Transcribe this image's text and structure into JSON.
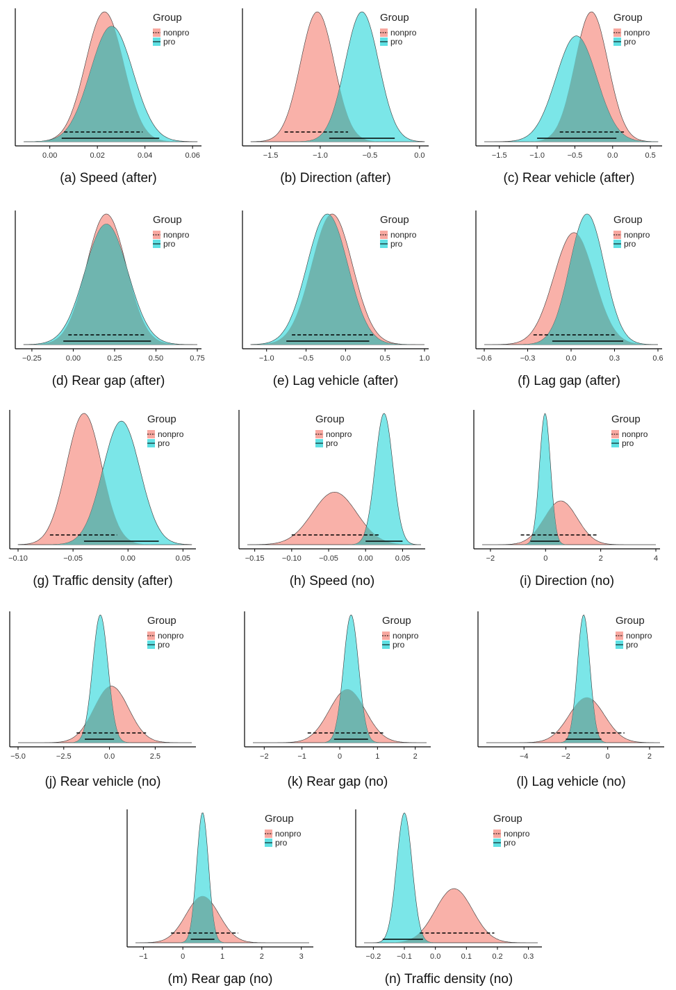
{
  "legend_title": "Group",
  "groups": [
    "nonpro",
    "pro"
  ],
  "colors": {
    "nonpro": "#f8a8a0",
    "pro": "#5ee0e3",
    "overlap": "#6fb3ad",
    "outline": "#333333",
    "axis": "#000000"
  },
  "chart_data": [
    {
      "type": "area",
      "caption": "(a) Speed (after)",
      "xlim": [
        -0.011,
        0.062
      ],
      "xticks": [
        "0.00",
        "0.02",
        "0.04",
        "0.06"
      ],
      "legend_position": "top-right",
      "series": [
        {
          "name": "nonpro",
          "mean": 0.023,
          "sd": 0.008,
          "interval": [
            0.006,
            0.039
          ],
          "line_style": "dashed"
        },
        {
          "name": "pro",
          "mean": 0.026,
          "sd": 0.009,
          "interval": [
            0.005,
            0.046
          ],
          "line_style": "solid"
        }
      ]
    },
    {
      "type": "area",
      "caption": "(b) Direction (after)",
      "xlim": [
        -1.7,
        0.05
      ],
      "xticks": [
        "-1.5",
        "-1.0",
        "-0.5",
        "0.0"
      ],
      "legend_position": "top-right",
      "series": [
        {
          "name": "nonpro",
          "mean": -1.03,
          "sd": 0.17,
          "interval": [
            -1.36,
            -0.72
          ],
          "line_style": "dashed"
        },
        {
          "name": "pro",
          "mean": -0.58,
          "sd": 0.17,
          "interval": [
            -0.91,
            -0.25
          ],
          "line_style": "solid"
        }
      ]
    },
    {
      "type": "area",
      "caption": "(c) Rear vehicle (after)",
      "xlim": [
        -1.7,
        0.6
      ],
      "xticks": [
        "-1.5",
        "-1.0",
        "-0.5",
        "0.0",
        "0.5"
      ],
      "legend_position": "top-right",
      "series": [
        {
          "name": "nonpro",
          "mean": -0.28,
          "sd": 0.22,
          "interval": [
            -0.7,
            0.15
          ],
          "line_style": "dashed"
        },
        {
          "name": "pro",
          "mean": -0.48,
          "sd": 0.27,
          "interval": [
            -1.0,
            0.05
          ],
          "line_style": "solid"
        }
      ]
    },
    {
      "type": "area",
      "caption": "(d) Rear gap (after)",
      "xlim": [
        -0.3,
        0.75
      ],
      "xticks": [
        "-0.25",
        "0.00",
        "0.25",
        "0.50",
        "0.75"
      ],
      "legend_position": "top-right",
      "series": [
        {
          "name": "nonpro",
          "mean": 0.2,
          "sd": 0.12,
          "interval": [
            -0.03,
            0.43
          ],
          "line_style": "dashed"
        },
        {
          "name": "pro",
          "mean": 0.2,
          "sd": 0.13,
          "interval": [
            -0.06,
            0.47
          ],
          "line_style": "solid"
        }
      ]
    },
    {
      "type": "area",
      "caption": "(e) Lag vehicle (after)",
      "xlim": [
        -1.2,
        1.0
      ],
      "xticks": [
        "-1.0",
        "-0.5",
        "0.0",
        "0.5",
        "1.0"
      ],
      "legend_position": "top-right",
      "series": [
        {
          "name": "nonpro",
          "mean": -0.17,
          "sd": 0.26,
          "interval": [
            -0.68,
            0.37
          ],
          "line_style": "dashed"
        },
        {
          "name": "pro",
          "mean": -0.23,
          "sd": 0.26,
          "interval": [
            -0.75,
            0.3
          ],
          "line_style": "solid"
        }
      ]
    },
    {
      "type": "area",
      "caption": "(f) Lag gap (after)",
      "xlim": [
        -0.6,
        0.6
      ],
      "xticks": [
        "-0.6",
        "-0.3",
        "0.0",
        "0.3",
        "0.6"
      ],
      "legend_position": "top-right",
      "series": [
        {
          "name": "nonpro",
          "mean": 0.02,
          "sd": 0.14,
          "interval": [
            -0.26,
            0.3
          ],
          "line_style": "dashed"
        },
        {
          "name": "pro",
          "mean": 0.11,
          "sd": 0.12,
          "interval": [
            -0.13,
            0.36
          ],
          "line_style": "solid"
        }
      ]
    },
    {
      "type": "area",
      "caption": "(g) Traffic density (after)",
      "xlim": [
        -0.1,
        0.058
      ],
      "xticks": [
        "-0.10",
        "-0.05",
        "0.00",
        "0.05"
      ],
      "legend_position": "top-right",
      "series": [
        {
          "name": "nonpro",
          "mean": -0.04,
          "sd": 0.016,
          "interval": [
            -0.071,
            -0.01
          ],
          "line_style": "dashed"
        },
        {
          "name": "pro",
          "mean": -0.006,
          "sd": 0.017,
          "interval": [
            -0.04,
            0.028
          ],
          "line_style": "solid"
        }
      ]
    },
    {
      "type": "area",
      "caption": "(h) Speed (no)",
      "xlim": [
        -0.16,
        0.075
      ],
      "xticks": [
        "-0.15",
        "-0.10",
        "-0.05",
        "0.00",
        "0.05"
      ],
      "legend_position": "top-center",
      "series": [
        {
          "name": "nonpro",
          "mean": -0.042,
          "sd": 0.03,
          "interval": [
            -0.1,
            0.018
          ],
          "line_style": "dashed"
        },
        {
          "name": "pro",
          "mean": 0.025,
          "sd": 0.012,
          "interval": [
            0.0,
            0.05
          ],
          "line_style": "solid"
        }
      ]
    },
    {
      "type": "area",
      "caption": "(i) Direction (no)",
      "xlim": [
        -2.3,
        4.0
      ],
      "xticks": [
        "-2",
        "0",
        "2",
        "4"
      ],
      "legend_position": "top-right",
      "series": [
        {
          "name": "nonpro",
          "mean": 0.55,
          "sd": 0.6,
          "interval": [
            -0.9,
            1.9
          ],
          "line_style": "dashed"
        },
        {
          "name": "pro",
          "mean": -0.02,
          "sd": 0.2,
          "interval": [
            -0.55,
            0.5
          ],
          "line_style": "solid"
        }
      ]
    },
    {
      "type": "area",
      "caption": "(j) Rear vehicle (no)",
      "xlim": [
        -5.0,
        4.5
      ],
      "xticks": [
        "-5.0",
        "-2.5",
        "0.0",
        "2.5"
      ],
      "legend_position": "top-right",
      "series": [
        {
          "name": "nonpro",
          "mean": 0.1,
          "sd": 0.95,
          "interval": [
            -1.8,
            2.0
          ],
          "line_style": "dashed"
        },
        {
          "name": "pro",
          "mean": -0.5,
          "sd": 0.42,
          "interval": [
            -1.35,
            0.25
          ],
          "line_style": "solid"
        }
      ]
    },
    {
      "type": "area",
      "caption": "(k) Rear gap (no)",
      "xlim": [
        -2.3,
        2.3
      ],
      "xticks": [
        "-2",
        "-1",
        "0",
        "1",
        "2"
      ],
      "legend_position": "top-right",
      "series": [
        {
          "name": "nonpro",
          "mean": 0.2,
          "sd": 0.48,
          "interval": [
            -0.85,
            1.15
          ],
          "line_style": "dashed"
        },
        {
          "name": "pro",
          "mean": 0.3,
          "sd": 0.2,
          "interval": [
            -0.15,
            0.75
          ],
          "line_style": "solid"
        }
      ]
    },
    {
      "type": "area",
      "caption": "(l) Lag vehicle (no)",
      "xlim": [
        -5.8,
        2.5
      ],
      "xticks": [
        "-4",
        "-2",
        "0",
        "2"
      ],
      "legend_position": "top-right",
      "series": [
        {
          "name": "nonpro",
          "mean": -1.0,
          "sd": 0.85,
          "interval": [
            -2.7,
            0.8
          ],
          "line_style": "dashed"
        },
        {
          "name": "pro",
          "mean": -1.15,
          "sd": 0.3,
          "interval": [
            -2.0,
            -0.3
          ],
          "line_style": "solid"
        }
      ]
    },
    {
      "type": "area",
      "caption": "(m) Rear gap (no)",
      "xlim": [
        -1.2,
        3.2
      ],
      "xticks": [
        "-1",
        "0",
        "1",
        "2",
        "3"
      ],
      "legend_position": "top-right",
      "series": [
        {
          "name": "nonpro",
          "mean": 0.5,
          "sd": 0.42,
          "interval": [
            -0.3,
            1.4
          ],
          "line_style": "dashed"
        },
        {
          "name": "pro",
          "mean": 0.5,
          "sd": 0.15,
          "interval": [
            0.2,
            0.8
          ],
          "line_style": "solid"
        }
      ]
    },
    {
      "type": "area",
      "caption": "(n) Traffic density (no)",
      "xlim": [
        -0.23,
        0.33
      ],
      "xticks": [
        "-0.2",
        "-0.1",
        "0.0",
        "0.1",
        "0.2",
        "0.3"
      ],
      "legend_position": "top-right",
      "series": [
        {
          "name": "nonpro",
          "mean": 0.06,
          "sd": 0.06,
          "interval": [
            -0.05,
            0.19
          ],
          "line_style": "dashed"
        },
        {
          "name": "pro",
          "mean": -0.1,
          "sd": 0.025,
          "interval": [
            -0.17,
            -0.04
          ],
          "line_style": "solid"
        }
      ]
    }
  ]
}
